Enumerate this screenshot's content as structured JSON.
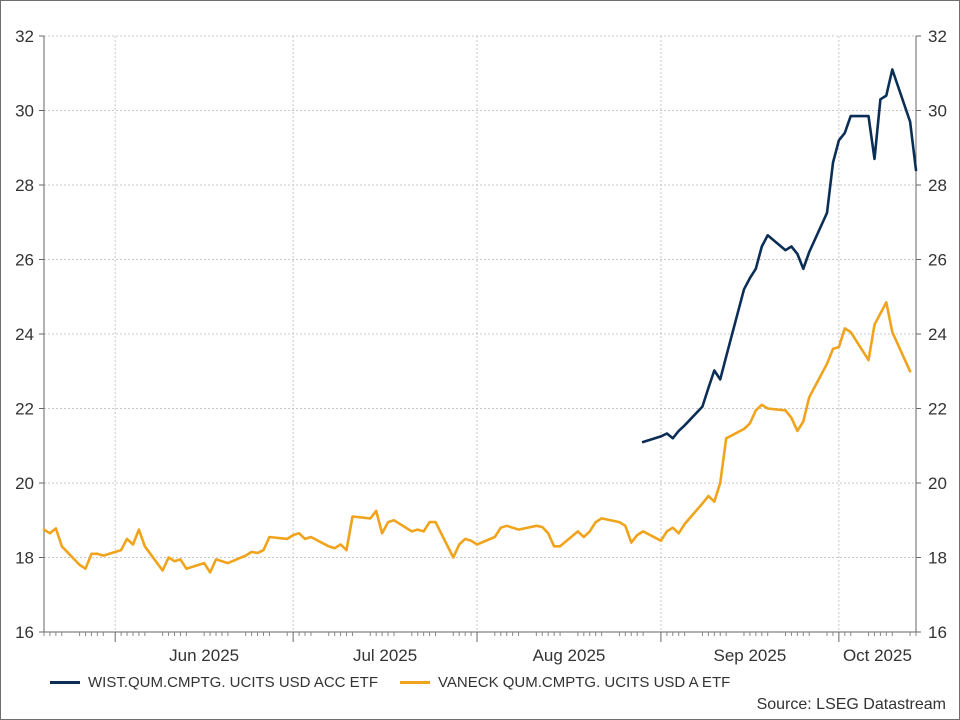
{
  "chart_data": {
    "type": "line",
    "xlabel": "",
    "ylabel": "",
    "ylim": [
      16,
      32
    ],
    "yticks": [
      "16",
      "18",
      "20",
      "22",
      "24",
      "26",
      "28",
      "30",
      "32"
    ],
    "month_labels": [
      "Jun 2025",
      "Jul 2025",
      "Aug 2025",
      "Sep 2025",
      "Oct 2025"
    ],
    "grid": true,
    "legend_position": "bottom-left",
    "source": "Source: LSEG Datastream",
    "series": [
      {
        "name": "WIST.QUM.CMPTG. UCITS USD ACC ETF",
        "color": "#0b2e57",
        "points": [
          [
            "2025-08-29",
            21.1
          ],
          [
            "2025-09-01",
            21.25
          ],
          [
            "2025-09-02",
            21.33
          ],
          [
            "2025-09-03",
            21.2
          ],
          [
            "2025-09-04",
            21.4
          ],
          [
            "2025-09-05",
            21.55
          ],
          [
            "2025-09-08",
            22.05
          ],
          [
            "2025-09-09",
            22.55
          ],
          [
            "2025-09-10",
            23.02
          ],
          [
            "2025-09-11",
            22.78
          ],
          [
            "2025-09-12",
            23.4
          ],
          [
            "2025-09-15",
            25.2
          ],
          [
            "2025-09-16",
            25.5
          ],
          [
            "2025-09-17",
            25.75
          ],
          [
            "2025-09-18",
            26.35
          ],
          [
            "2025-09-19",
            26.65
          ],
          [
            "2025-09-22",
            26.25
          ],
          [
            "2025-09-23",
            26.35
          ],
          [
            "2025-09-24",
            26.15
          ],
          [
            "2025-09-25",
            25.75
          ],
          [
            "2025-09-26",
            26.2
          ],
          [
            "2025-09-29",
            27.25
          ],
          [
            "2025-09-30",
            28.6
          ],
          [
            "2025-10-01",
            29.2
          ],
          [
            "2025-10-02",
            29.4
          ],
          [
            "2025-10-03",
            29.85
          ],
          [
            "2025-10-06",
            29.85
          ],
          [
            "2025-10-07",
            28.7
          ],
          [
            "2025-10-08",
            30.3
          ],
          [
            "2025-10-09",
            30.4
          ],
          [
            "2025-10-10",
            31.1
          ],
          [
            "2025-10-13",
            29.7
          ],
          [
            "2025-10-14",
            28.4
          ]
        ]
      },
      {
        "name": "VANECK QUM.CMPTG. UCITS USD A ETF",
        "color": "#f0a31c",
        "points": [
          [
            "2025-05-20",
            18.75
          ],
          [
            "2025-05-21",
            18.65
          ],
          [
            "2025-05-22",
            18.78
          ],
          [
            "2025-05-23",
            18.3
          ],
          [
            "2025-05-26",
            17.8
          ],
          [
            "2025-05-27",
            17.7
          ],
          [
            "2025-05-28",
            18.1
          ],
          [
            "2025-05-29",
            18.1
          ],
          [
            "2025-05-30",
            18.05
          ],
          [
            "2025-06-02",
            18.2
          ],
          [
            "2025-06-03",
            18.5
          ],
          [
            "2025-06-04",
            18.35
          ],
          [
            "2025-06-05",
            18.75
          ],
          [
            "2025-06-06",
            18.3
          ],
          [
            "2025-06-09",
            17.65
          ],
          [
            "2025-06-10",
            18.0
          ],
          [
            "2025-06-11",
            17.9
          ],
          [
            "2025-06-12",
            17.95
          ],
          [
            "2025-06-13",
            17.7
          ],
          [
            "2025-06-16",
            17.85
          ],
          [
            "2025-06-17",
            17.6
          ],
          [
            "2025-06-18",
            17.95
          ],
          [
            "2025-06-19",
            17.9
          ],
          [
            "2025-06-20",
            17.85
          ],
          [
            "2025-06-23",
            18.05
          ],
          [
            "2025-06-24",
            18.15
          ],
          [
            "2025-06-25",
            18.12
          ],
          [
            "2025-06-26",
            18.2
          ],
          [
            "2025-06-27",
            18.55
          ],
          [
            "2025-06-30",
            18.5
          ],
          [
            "2025-07-01",
            18.6
          ],
          [
            "2025-07-02",
            18.65
          ],
          [
            "2025-07-03",
            18.5
          ],
          [
            "2025-07-04",
            18.55
          ],
          [
            "2025-07-07",
            18.3
          ],
          [
            "2025-07-08",
            18.25
          ],
          [
            "2025-07-09",
            18.35
          ],
          [
            "2025-07-10",
            18.2
          ],
          [
            "2025-07-11",
            19.1
          ],
          [
            "2025-07-14",
            19.05
          ],
          [
            "2025-07-15",
            19.25
          ],
          [
            "2025-07-16",
            18.65
          ],
          [
            "2025-07-17",
            18.95
          ],
          [
            "2025-07-18",
            19.0
          ],
          [
            "2025-07-21",
            18.7
          ],
          [
            "2025-07-22",
            18.75
          ],
          [
            "2025-07-23",
            18.7
          ],
          [
            "2025-07-24",
            18.95
          ],
          [
            "2025-07-25",
            18.95
          ],
          [
            "2025-07-28",
            18.0
          ],
          [
            "2025-07-29",
            18.35
          ],
          [
            "2025-07-30",
            18.5
          ],
          [
            "2025-07-31",
            18.45
          ],
          [
            "2025-08-01",
            18.35
          ],
          [
            "2025-08-04",
            18.55
          ],
          [
            "2025-08-05",
            18.8
          ],
          [
            "2025-08-06",
            18.85
          ],
          [
            "2025-08-07",
            18.8
          ],
          [
            "2025-08-08",
            18.75
          ],
          [
            "2025-08-11",
            18.85
          ],
          [
            "2025-08-12",
            18.82
          ],
          [
            "2025-08-13",
            18.65
          ],
          [
            "2025-08-14",
            18.3
          ],
          [
            "2025-08-15",
            18.3
          ],
          [
            "2025-08-18",
            18.7
          ],
          [
            "2025-08-19",
            18.55
          ],
          [
            "2025-08-20",
            18.7
          ],
          [
            "2025-08-21",
            18.95
          ],
          [
            "2025-08-22",
            19.05
          ],
          [
            "2025-08-25",
            18.95
          ],
          [
            "2025-08-26",
            18.85
          ],
          [
            "2025-08-27",
            18.4
          ],
          [
            "2025-08-28",
            18.6
          ],
          [
            "2025-08-29",
            18.7
          ],
          [
            "2025-09-01",
            18.45
          ],
          [
            "2025-09-02",
            18.7
          ],
          [
            "2025-09-03",
            18.8
          ],
          [
            "2025-09-04",
            18.65
          ],
          [
            "2025-09-05",
            18.9
          ],
          [
            "2025-09-08",
            19.45
          ],
          [
            "2025-09-09",
            19.65
          ],
          [
            "2025-09-10",
            19.5
          ],
          [
            "2025-09-11",
            20.0
          ],
          [
            "2025-09-12",
            21.2
          ],
          [
            "2025-09-15",
            21.45
          ],
          [
            "2025-09-16",
            21.6
          ],
          [
            "2025-09-17",
            21.95
          ],
          [
            "2025-09-18",
            22.1
          ],
          [
            "2025-09-19",
            22.0
          ],
          [
            "2025-09-22",
            21.95
          ],
          [
            "2025-09-23",
            21.75
          ],
          [
            "2025-09-24",
            21.4
          ],
          [
            "2025-09-25",
            21.65
          ],
          [
            "2025-09-26",
            22.3
          ],
          [
            "2025-09-29",
            23.2
          ],
          [
            "2025-09-30",
            23.6
          ],
          [
            "2025-10-01",
            23.65
          ],
          [
            "2025-10-02",
            24.15
          ],
          [
            "2025-10-03",
            24.05
          ],
          [
            "2025-10-06",
            23.3
          ],
          [
            "2025-10-07",
            24.25
          ],
          [
            "2025-10-08",
            24.55
          ],
          [
            "2025-10-09",
            24.85
          ],
          [
            "2025-10-10",
            24.05
          ],
          [
            "2025-10-13",
            23.0
          ]
        ]
      }
    ]
  }
}
